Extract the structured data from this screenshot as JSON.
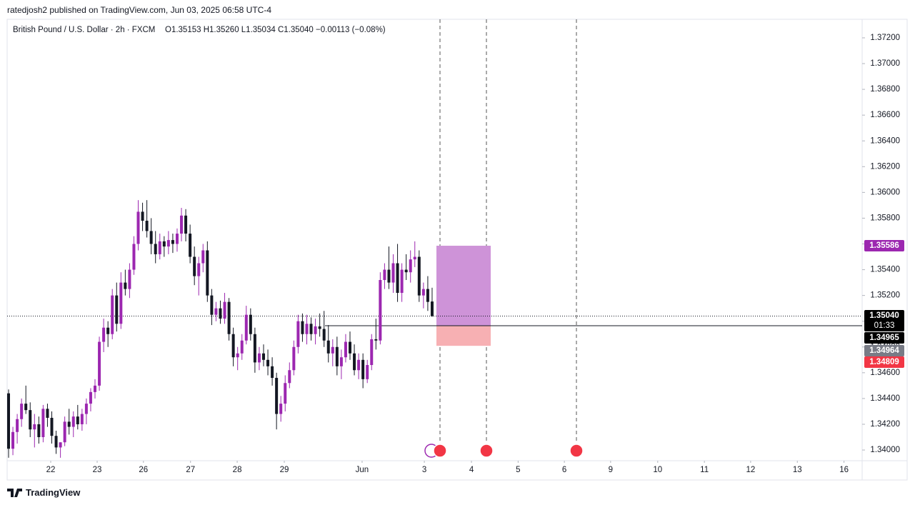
{
  "publish_line": "ratedjosh2 published on TradingView.com, Jun 03, 2025 06:58 UTC-4",
  "footer": "TradingView",
  "chart_data": {
    "type": "candlestick",
    "title": "British Pound / U.S. Dollar · 2h · FXCM",
    "ohlc_summary": "O1.35153 H1.35260 L1.35034 C1.35040 −0.00113 (−0.08%)",
    "up_color": "#9c27b0",
    "down_color": "#131722",
    "candles": [
      [
        1.3444,
        1.3447,
        1.3394,
        1.3401
      ],
      [
        1.3401,
        1.3418,
        1.3396,
        1.3414
      ],
      [
        1.3414,
        1.3428,
        1.3405,
        1.3424
      ],
      [
        1.3424,
        1.344,
        1.3418,
        1.3436
      ],
      [
        1.3436,
        1.345,
        1.3428,
        1.3431
      ],
      [
        1.3431,
        1.3437,
        1.341,
        1.3416
      ],
      [
        1.3416,
        1.3428,
        1.3402,
        1.342
      ],
      [
        1.342,
        1.3426,
        1.3405,
        1.341
      ],
      [
        1.341,
        1.3435,
        1.3406,
        1.3432
      ],
      [
        1.3432,
        1.3436,
        1.3418,
        1.3425
      ],
      [
        1.3425,
        1.343,
        1.3405,
        1.3411
      ],
      [
        1.3411,
        1.3415,
        1.3397,
        1.3402
      ],
      [
        1.3402,
        1.3406,
        1.3394,
        1.3406
      ],
      [
        1.3406,
        1.3426,
        1.3403,
        1.3422
      ],
      [
        1.3422,
        1.3432,
        1.3412,
        1.3418
      ],
      [
        1.3418,
        1.343,
        1.341,
        1.3426
      ],
      [
        1.3426,
        1.3435,
        1.3416,
        1.342
      ],
      [
        1.342,
        1.3432,
        1.3415,
        1.3428
      ],
      [
        1.3428,
        1.344,
        1.342,
        1.3436
      ],
      [
        1.3436,
        1.3448,
        1.343,
        1.3445
      ],
      [
        1.3445,
        1.3455,
        1.344,
        1.345
      ],
      [
        1.345,
        1.3488,
        1.3446,
        1.3484
      ],
      [
        1.3484,
        1.3502,
        1.3476,
        1.3495
      ],
      [
        1.3495,
        1.35,
        1.348,
        1.349
      ],
      [
        1.349,
        1.3525,
        1.3486,
        1.352
      ],
      [
        1.352,
        1.353,
        1.3492,
        1.3498
      ],
      [
        1.3498,
        1.3538,
        1.3494,
        1.353
      ],
      [
        1.353,
        1.354,
        1.352,
        1.3525
      ],
      [
        1.3525,
        1.3545,
        1.3518,
        1.354
      ],
      [
        1.354,
        1.3566,
        1.3536,
        1.356
      ],
      [
        1.356,
        1.3594,
        1.3555,
        1.3585
      ],
      [
        1.3585,
        1.3592,
        1.357,
        1.3578
      ],
      [
        1.3578,
        1.3594,
        1.3565,
        1.357
      ],
      [
        1.357,
        1.358,
        1.3552,
        1.356
      ],
      [
        1.356,
        1.357,
        1.3545,
        1.3552
      ],
      [
        1.3552,
        1.3568,
        1.3548,
        1.3562
      ],
      [
        1.3562,
        1.3566,
        1.355,
        1.3558
      ],
      [
        1.3558,
        1.357,
        1.3552,
        1.3563
      ],
      [
        1.3563,
        1.3568,
        1.3553,
        1.356
      ],
      [
        1.356,
        1.3572,
        1.3554,
        1.3568
      ],
      [
        1.3568,
        1.3588,
        1.3562,
        1.3582
      ],
      [
        1.3582,
        1.3587,
        1.3562,
        1.3568
      ],
      [
        1.3568,
        1.3575,
        1.3545,
        1.355
      ],
      [
        1.355,
        1.3558,
        1.3528,
        1.3535
      ],
      [
        1.3535,
        1.355,
        1.352,
        1.3545
      ],
      [
        1.3545,
        1.356,
        1.3538,
        1.3555
      ],
      [
        1.3555,
        1.3562,
        1.3515,
        1.352
      ],
      [
        1.352,
        1.3525,
        1.3497,
        1.3505
      ],
      [
        1.3505,
        1.3515,
        1.35,
        1.351
      ],
      [
        1.351,
        1.3516,
        1.3498,
        1.3502
      ],
      [
        1.3502,
        1.3522,
        1.3498,
        1.3515
      ],
      [
        1.3515,
        1.3518,
        1.3485,
        1.349
      ],
      [
        1.349,
        1.3495,
        1.3465,
        1.3472
      ],
      [
        1.3472,
        1.348,
        1.3462,
        1.3475
      ],
      [
        1.3475,
        1.349,
        1.347,
        1.3485
      ],
      [
        1.3485,
        1.3512,
        1.3482,
        1.3505
      ],
      [
        1.3505,
        1.351,
        1.3485,
        1.349
      ],
      [
        1.349,
        1.3495,
        1.346,
        1.3468
      ],
      [
        1.3468,
        1.348,
        1.3462,
        1.3475
      ],
      [
        1.3475,
        1.3482,
        1.3465,
        1.347
      ],
      [
        1.347,
        1.3478,
        1.3458,
        1.3465
      ],
      [
        1.3465,
        1.3472,
        1.345,
        1.3456
      ],
      [
        1.3456,
        1.346,
        1.3416,
        1.3428
      ],
      [
        1.3428,
        1.3442,
        1.3422,
        1.3436
      ],
      [
        1.3436,
        1.3458,
        1.343,
        1.3452
      ],
      [
        1.3452,
        1.3468,
        1.3448,
        1.3462
      ],
      [
        1.3462,
        1.3485,
        1.3458,
        1.348
      ],
      [
        1.348,
        1.3505,
        1.3475,
        1.35
      ],
      [
        1.35,
        1.3506,
        1.3484,
        1.349
      ],
      [
        1.349,
        1.3505,
        1.3482,
        1.3498
      ],
      [
        1.3498,
        1.3503,
        1.3485,
        1.349
      ],
      [
        1.349,
        1.3502,
        1.3482,
        1.3496
      ],
      [
        1.3496,
        1.3506,
        1.3488,
        1.3494
      ],
      [
        1.3494,
        1.3508,
        1.348,
        1.3485
      ],
      [
        1.3485,
        1.3497,
        1.3468,
        1.3475
      ],
      [
        1.3475,
        1.3486,
        1.3465,
        1.348
      ],
      [
        1.348,
        1.3488,
        1.3458,
        1.3465
      ],
      [
        1.3465,
        1.3478,
        1.3455,
        1.3472
      ],
      [
        1.3472,
        1.349,
        1.3468,
        1.3484
      ],
      [
        1.3484,
        1.3492,
        1.347,
        1.3475
      ],
      [
        1.3475,
        1.3482,
        1.3458,
        1.3462
      ],
      [
        1.3462,
        1.3475,
        1.3455,
        1.347
      ],
      [
        1.347,
        1.3475,
        1.3448,
        1.3455
      ],
      [
        1.3455,
        1.347,
        1.3452,
        1.3466
      ],
      [
        1.3466,
        1.349,
        1.3462,
        1.3486
      ],
      [
        1.3486,
        1.3502,
        1.3478,
        1.3485
      ],
      [
        1.3485,
        1.3538,
        1.3482,
        1.3532
      ],
      [
        1.3532,
        1.3545,
        1.3525,
        1.354
      ],
      [
        1.354,
        1.3558,
        1.3525,
        1.353
      ],
      [
        1.353,
        1.3552,
        1.3522,
        1.3545
      ],
      [
        1.3545,
        1.356,
        1.3515,
        1.3522
      ],
      [
        1.3522,
        1.3545,
        1.3515,
        1.354
      ],
      [
        1.354,
        1.3552,
        1.3532,
        1.3538
      ],
      [
        1.3538,
        1.3555,
        1.353,
        1.3548
      ],
      [
        1.3548,
        1.3562,
        1.3542,
        1.355
      ],
      [
        1.355,
        1.3555,
        1.3515,
        1.352
      ],
      [
        1.352,
        1.353,
        1.351,
        1.3525
      ],
      [
        1.3525,
        1.3535,
        1.3508,
        1.3515
      ],
      [
        1.35153,
        1.3526,
        1.35034,
        1.3504
      ]
    ],
    "xlim": [
      -0.33,
      197.5
    ],
    "xticks": [
      {
        "value": 9.75,
        "label": "22"
      },
      {
        "value": 20.5,
        "label": "23"
      },
      {
        "value": 31.2,
        "label": "26"
      },
      {
        "value": 42.1,
        "label": "27"
      },
      {
        "value": 52.9,
        "label": "28"
      },
      {
        "value": 63.8,
        "label": "29"
      },
      {
        "value": 81.8,
        "label": "Jun"
      },
      {
        "value": 96.2,
        "label": "3"
      },
      {
        "value": 107.1,
        "label": "4"
      },
      {
        "value": 117.9,
        "label": "5"
      },
      {
        "value": 128.6,
        "label": "6"
      },
      {
        "value": 139.3,
        "label": "9"
      },
      {
        "value": 150.2,
        "label": "10"
      },
      {
        "value": 161,
        "label": "11"
      },
      {
        "value": 171.7,
        "label": "12"
      },
      {
        "value": 182.5,
        "label": "13"
      },
      {
        "value": 193.3,
        "label": "16"
      }
    ],
    "ylim": [
      1.33917,
      1.37344
    ],
    "yticks": [
      {
        "value": 1.34,
        "label": "1.34000"
      },
      {
        "value": 1.342,
        "label": "1.34200"
      },
      {
        "value": 1.344,
        "label": "1.34400"
      },
      {
        "value": 1.346,
        "label": "1.34600"
      },
      {
        "value": 1.348,
        "label": "1.34800"
      },
      {
        "value": 1.35,
        "label": "1.35000"
      },
      {
        "value": 1.352,
        "label": "1.35200"
      },
      {
        "value": 1.354,
        "label": "1.35400"
      },
      {
        "value": 1.356,
        "label": "1.35600"
      },
      {
        "value": 1.358,
        "label": "1.35800"
      },
      {
        "value": 1.36,
        "label": "1.36000"
      },
      {
        "value": 1.362,
        "label": "1.36200"
      },
      {
        "value": 1.364,
        "label": "1.36400"
      },
      {
        "value": 1.366,
        "label": "1.36600"
      },
      {
        "value": 1.368,
        "label": "1.36800"
      },
      {
        "value": 1.37,
        "label": "1.37000"
      },
      {
        "value": 1.372,
        "label": "1.37200"
      }
    ],
    "countdown": "01:33",
    "price_badges": [
      {
        "value": 1.35586,
        "label": "1.35586",
        "color": "#9c27b0"
      },
      {
        "value": 1.3504,
        "label": "1.35040",
        "color": "#000000"
      },
      {
        "value": 1.34965,
        "label": "1.34965",
        "color": "#000000"
      },
      {
        "value": 1.34964,
        "label": "1.34964",
        "color": "#787b86"
      },
      {
        "value": 1.34809,
        "label": "1.34809",
        "color": "#f23645"
      }
    ],
    "position": {
      "stop": 1.35586,
      "entry": 1.34964,
      "target": 1.34809,
      "stop_color": "#ce93d8",
      "target_color": "#f7b0b3"
    }
  }
}
